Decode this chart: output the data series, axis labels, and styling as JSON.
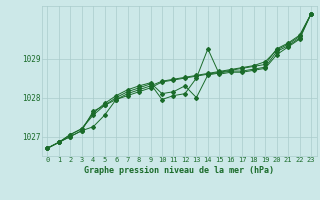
{
  "title": "Graphe pression niveau de la mer (hPa)",
  "bg_color": "#cce8e8",
  "grid_color": "#aacccc",
  "line_color": "#1a6b2a",
  "xlim": [
    -0.5,
    23.5
  ],
  "ylim": [
    1026.5,
    1030.35
  ],
  "yticks": [
    1027,
    1028,
    1029
  ],
  "xticks": [
    0,
    1,
    2,
    3,
    4,
    5,
    6,
    7,
    8,
    9,
    10,
    11,
    12,
    13,
    14,
    15,
    16,
    17,
    18,
    19,
    20,
    21,
    22,
    23
  ],
  "series": [
    [
      1026.7,
      1026.85,
      1027.0,
      1027.15,
      1027.25,
      1027.55,
      1027.95,
      1028.05,
      1028.15,
      1028.25,
      1028.4,
      1028.45,
      1028.5,
      1028.55,
      1028.6,
      1028.65,
      1028.7,
      1028.75,
      1028.8,
      1028.85,
      1029.25,
      1029.4,
      1029.6,
      1030.15
    ],
    [
      1026.7,
      1026.85,
      1027.0,
      1027.15,
      1027.65,
      1027.8,
      1028.0,
      1028.15,
      1028.25,
      1028.35,
      1027.95,
      1028.05,
      1028.1,
      1028.5,
      1029.25,
      1028.6,
      1028.65,
      1028.65,
      1028.7,
      1028.75,
      1029.1,
      1029.3,
      1029.5,
      1030.15
    ],
    [
      1026.7,
      1026.85,
      1027.05,
      1027.2,
      1027.6,
      1027.85,
      1028.05,
      1028.2,
      1028.3,
      1028.38,
      1028.1,
      1028.15,
      1028.3,
      1028.0,
      1028.58,
      1028.63,
      1028.68,
      1028.68,
      1028.73,
      1028.78,
      1029.18,
      1029.33,
      1029.53,
      1030.15
    ],
    [
      1026.7,
      1026.85,
      1027.05,
      1027.2,
      1027.55,
      1027.8,
      1027.95,
      1028.1,
      1028.2,
      1028.3,
      1028.42,
      1028.47,
      1028.52,
      1028.57,
      1028.62,
      1028.67,
      1028.72,
      1028.77,
      1028.82,
      1028.92,
      1029.22,
      1029.37,
      1029.57,
      1030.15
    ]
  ]
}
